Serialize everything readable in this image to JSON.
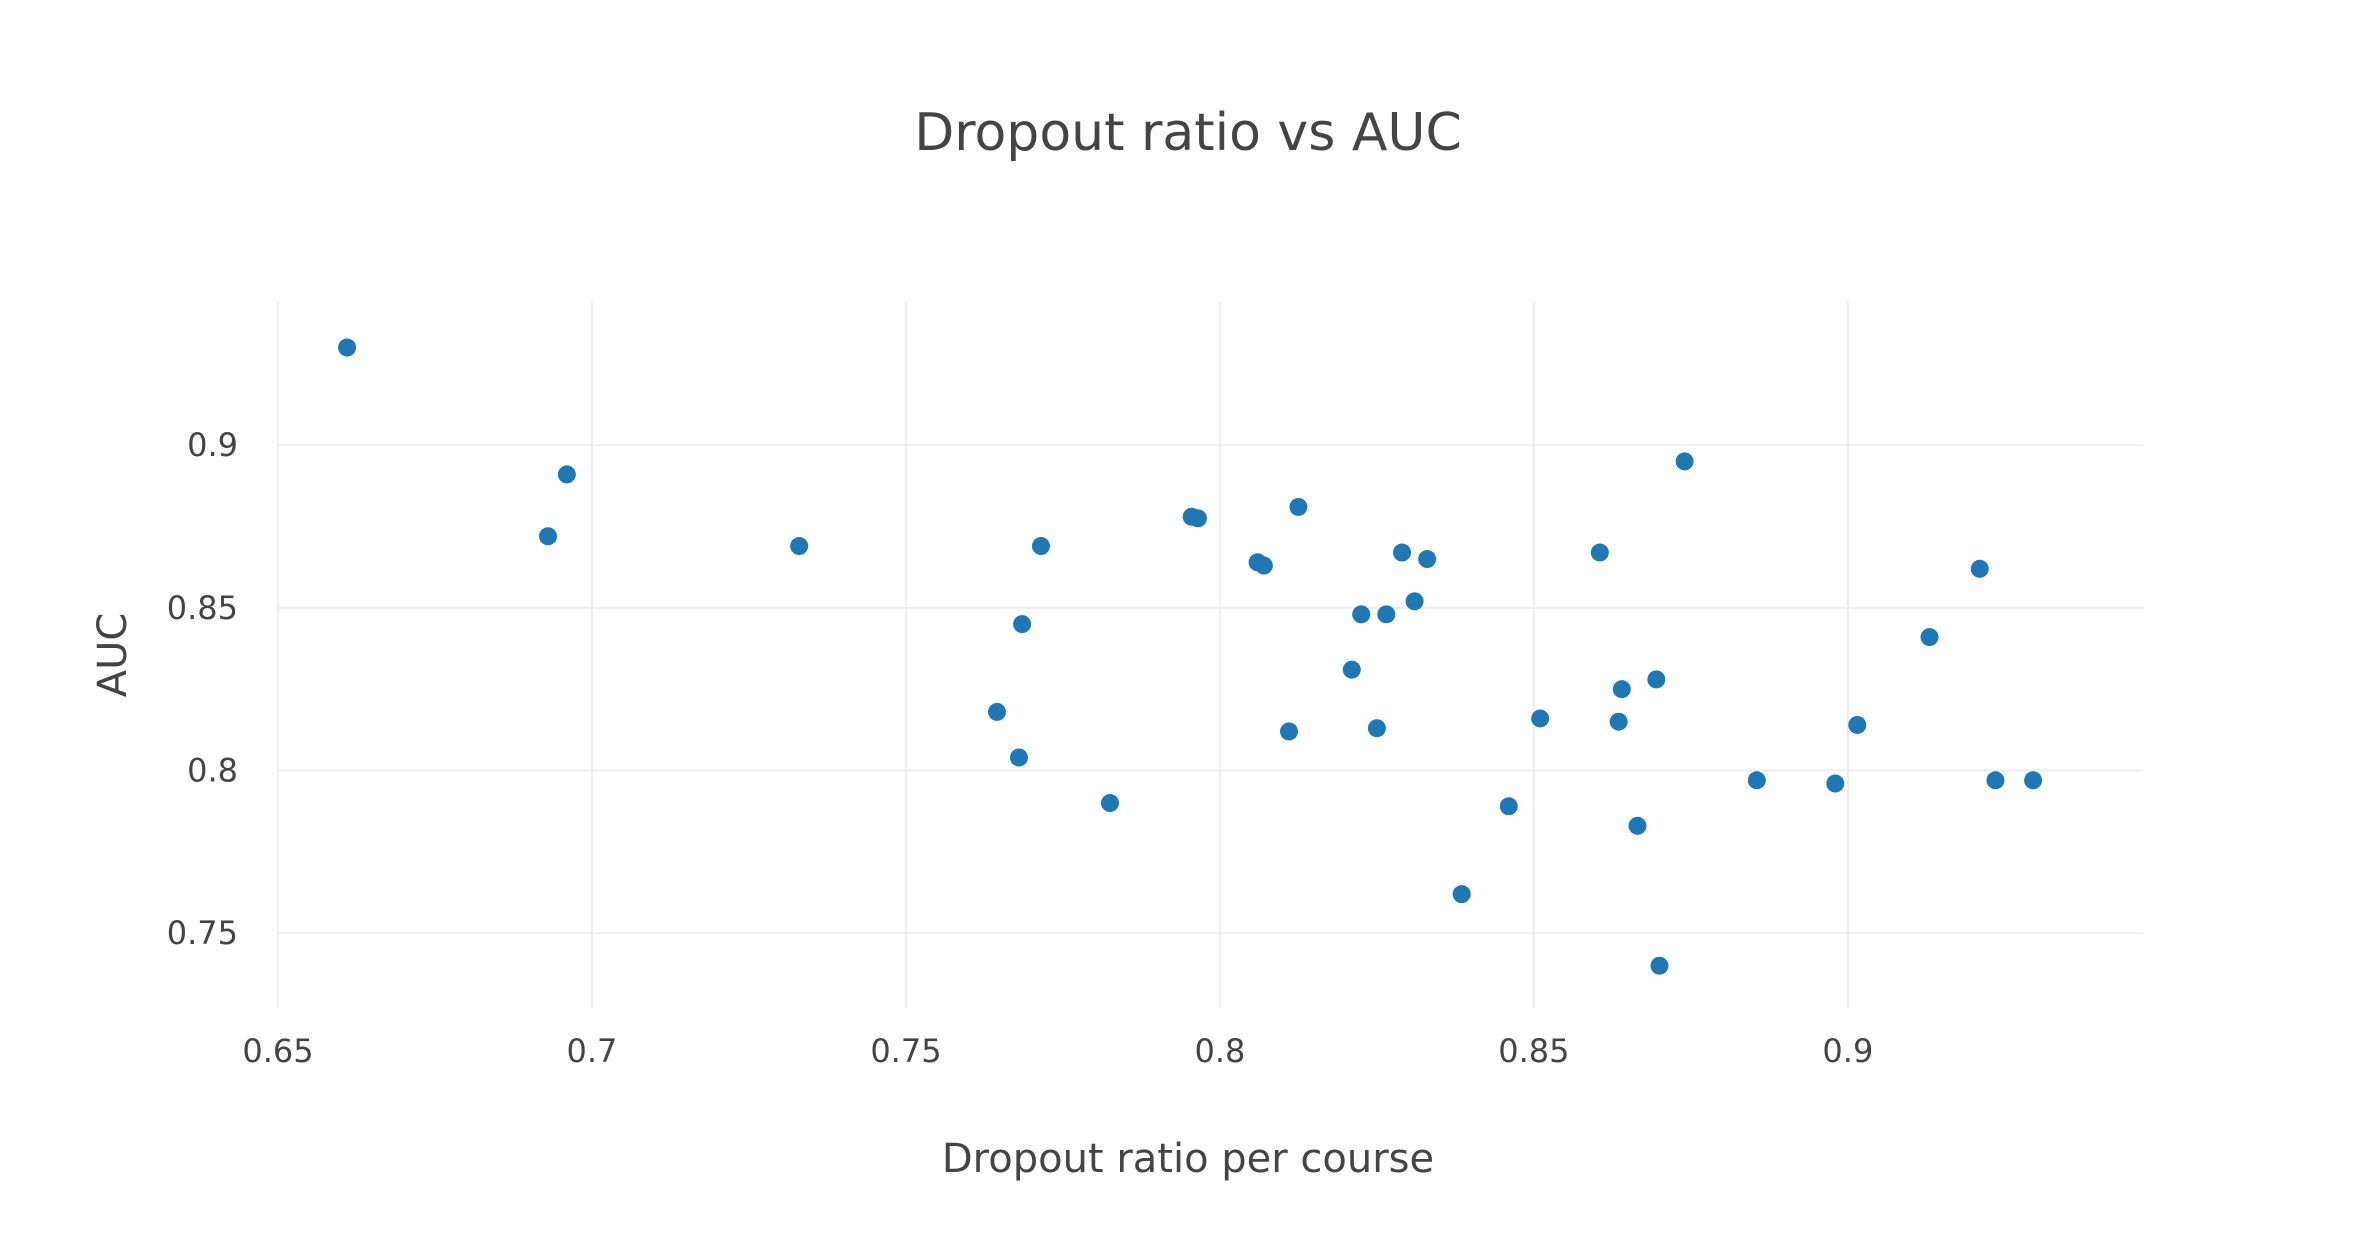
{
  "chart_data": {
    "type": "scatter",
    "title": "Dropout ratio vs AUC",
    "xlabel": "Dropout ratio per course",
    "ylabel": "AUC",
    "xlim": [
      0.65,
      0.947
    ],
    "ylim": [
      0.727,
      0.944
    ],
    "x_ticks": [
      0.65,
      0.7,
      0.75,
      0.8,
      0.85,
      0.9
    ],
    "x_tick_labels": [
      "0.65",
      "0.7",
      "0.75",
      "0.8",
      "0.85",
      "0.9"
    ],
    "y_ticks": [
      0.75,
      0.8,
      0.85,
      0.9
    ],
    "y_tick_labels": [
      "0.75",
      "0.8",
      "0.85",
      "0.9"
    ],
    "grid": true,
    "marker_color": "#1f77b4",
    "series": [
      {
        "name": "",
        "points": [
          {
            "x": 0.661,
            "y": 0.93
          },
          {
            "x": 0.696,
            "y": 0.891
          },
          {
            "x": 0.693,
            "y": 0.872
          },
          {
            "x": 0.733,
            "y": 0.869
          },
          {
            "x": 0.7645,
            "y": 0.818
          },
          {
            "x": 0.768,
            "y": 0.804
          },
          {
            "x": 0.7685,
            "y": 0.845
          },
          {
            "x": 0.7715,
            "y": 0.869
          },
          {
            "x": 0.7825,
            "y": 0.79
          },
          {
            "x": 0.7955,
            "y": 0.878
          },
          {
            "x": 0.7965,
            "y": 0.8775
          },
          {
            "x": 0.806,
            "y": 0.864
          },
          {
            "x": 0.807,
            "y": 0.863
          },
          {
            "x": 0.811,
            "y": 0.812
          },
          {
            "x": 0.8125,
            "y": 0.881
          },
          {
            "x": 0.821,
            "y": 0.831
          },
          {
            "x": 0.8225,
            "y": 0.848
          },
          {
            "x": 0.825,
            "y": 0.813
          },
          {
            "x": 0.8265,
            "y": 0.848
          },
          {
            "x": 0.829,
            "y": 0.867
          },
          {
            "x": 0.831,
            "y": 0.852
          },
          {
            "x": 0.833,
            "y": 0.865
          },
          {
            "x": 0.8385,
            "y": 0.762
          },
          {
            "x": 0.846,
            "y": 0.789
          },
          {
            "x": 0.851,
            "y": 0.816
          },
          {
            "x": 0.8605,
            "y": 0.867
          },
          {
            "x": 0.8635,
            "y": 0.815
          },
          {
            "x": 0.864,
            "y": 0.825
          },
          {
            "x": 0.8665,
            "y": 0.783
          },
          {
            "x": 0.8695,
            "y": 0.828
          },
          {
            "x": 0.87,
            "y": 0.74
          },
          {
            "x": 0.874,
            "y": 0.895
          },
          {
            "x": 0.8855,
            "y": 0.797
          },
          {
            "x": 0.898,
            "y": 0.796
          },
          {
            "x": 0.9015,
            "y": 0.814
          },
          {
            "x": 0.913,
            "y": 0.841
          },
          {
            "x": 0.921,
            "y": 0.862
          },
          {
            "x": 0.9235,
            "y": 0.797
          },
          {
            "x": 0.9295,
            "y": 0.797
          }
        ]
      }
    ]
  }
}
